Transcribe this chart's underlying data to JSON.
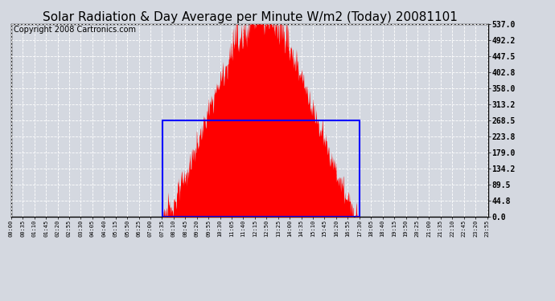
{
  "title": "Solar Radiation & Day Average per Minute W/m2 (Today) 20081101",
  "copyright": "Copyright 2008 Cartronics.com",
  "yticks": [
    0.0,
    44.8,
    89.5,
    134.2,
    179.0,
    223.8,
    268.5,
    313.2,
    358.0,
    402.8,
    447.5,
    492.2,
    537.0
  ],
  "ymax": 537.0,
  "ymin": 0.0,
  "total_minutes": 1440,
  "sunrise_minute": 456,
  "sunset_minute": 1051,
  "day_average": 268.5,
  "peak_value": 537.0,
  "background_color": "#d4d8e0",
  "plot_bg_color": "#d4d8e0",
  "fill_color": "#ff0000",
  "box_color": "#0000ff",
  "grid_color": "#ffffff",
  "title_fontsize": 11,
  "copyright_fontsize": 7,
  "xtick_start": 0,
  "xtick_step": 35,
  "xtick_fontsize": 5,
  "ytick_fontsize": 7
}
